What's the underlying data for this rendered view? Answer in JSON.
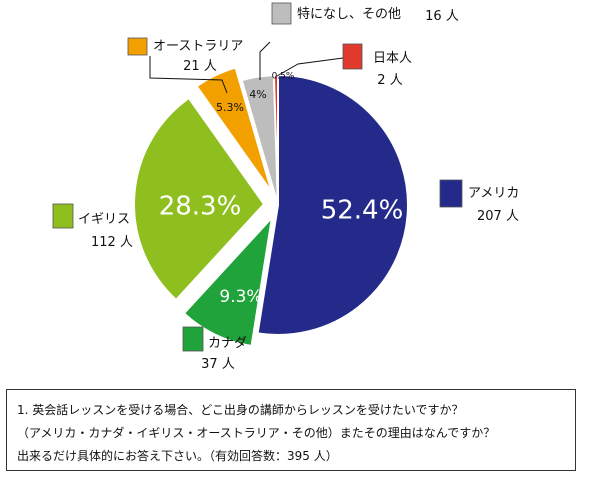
{
  "chart_data": {
    "type": "pie",
    "slices": [
      {
        "label": "アメリカ",
        "count_label": "207 人",
        "percent_label": "52.4%",
        "value": 52.4,
        "color": "#232a8a",
        "exploded": false
      },
      {
        "label": "カナダ",
        "count_label": "37 人",
        "percent_label": "9.3%",
        "value": 9.3,
        "color": "#1fa33a",
        "exploded": true
      },
      {
        "label": "イギリス",
        "count_label": "112 人",
        "percent_label": "28.3%",
        "value": 28.3,
        "color": "#8fbf1f",
        "exploded": true
      },
      {
        "label": "オーストラリア",
        "count_label": "21 人",
        "percent_label": "5.3%",
        "value": 5.3,
        "color": "#f2a000",
        "exploded": true
      },
      {
        "label": "特になし、その他",
        "count_label": "16 人",
        "percent_label": "4%",
        "value": 4.0,
        "color": "#bdbdbd",
        "exploded": false
      },
      {
        "label": "日本人",
        "count_label": "2 人",
        "percent_label": "0.5%",
        "value": 0.5,
        "color": "#e03a2e",
        "exploded": false
      }
    ]
  },
  "caption": {
    "line1": "1. 英会話レッスンを受ける場合、どこ出身の講師からレッスンを受けたいですか？",
    "line2": "（アメリカ・カナダ・イギリス・オーストラリア・その他）またその理由はなんですか？",
    "line3": "出来るだけ具体的にお答え下さい。（有効回答数：395 人）"
  }
}
